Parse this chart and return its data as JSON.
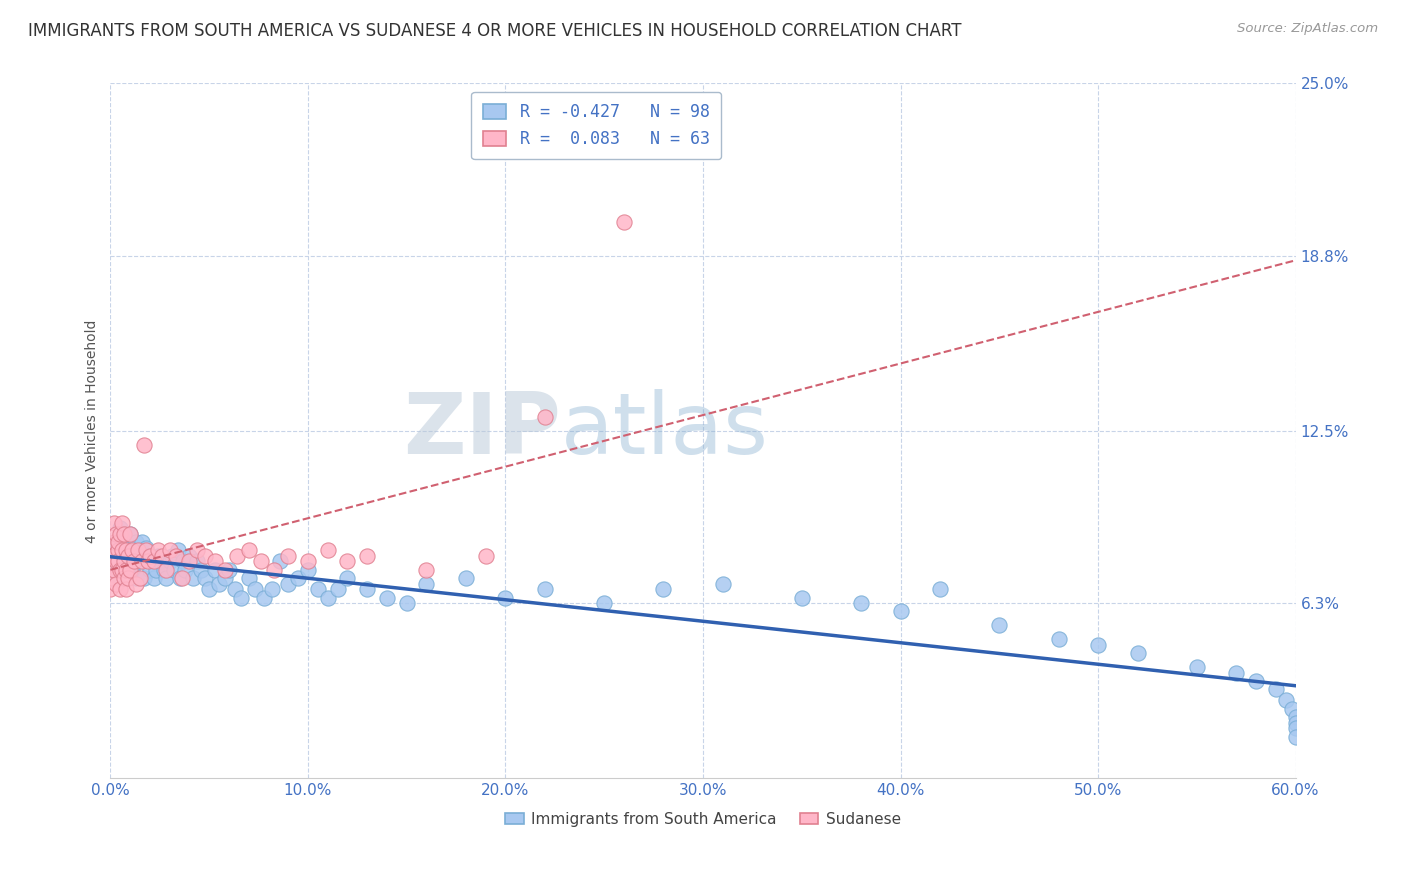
{
  "title": "IMMIGRANTS FROM SOUTH AMERICA VS SUDANESE 4 OR MORE VEHICLES IN HOUSEHOLD CORRELATION CHART",
  "source": "Source: ZipAtlas.com",
  "ylabel": "4 or more Vehicles in Household",
  "series": [
    {
      "name": "Immigrants from South America",
      "color": "#a8c8f0",
      "edge_color": "#7aaed6",
      "R": -0.427,
      "N": 98,
      "trend_color": "#3060b0",
      "trend_style": "solid",
      "trend_lw": 2.5,
      "x": [
        0.001,
        0.002,
        0.002,
        0.003,
        0.003,
        0.004,
        0.004,
        0.005,
        0.005,
        0.006,
        0.006,
        0.007,
        0.007,
        0.008,
        0.008,
        0.009,
        0.009,
        0.01,
        0.01,
        0.011,
        0.011,
        0.012,
        0.013,
        0.013,
        0.014,
        0.015,
        0.016,
        0.017,
        0.018,
        0.018,
        0.019,
        0.02,
        0.021,
        0.022,
        0.023,
        0.024,
        0.025,
        0.027,
        0.028,
        0.03,
        0.031,
        0.032,
        0.034,
        0.035,
        0.037,
        0.038,
        0.04,
        0.042,
        0.044,
        0.046,
        0.048,
        0.05,
        0.053,
        0.055,
        0.058,
        0.06,
        0.063,
        0.066,
        0.07,
        0.073,
        0.078,
        0.082,
        0.086,
        0.09,
        0.095,
        0.1,
        0.105,
        0.11,
        0.115,
        0.12,
        0.13,
        0.14,
        0.15,
        0.16,
        0.18,
        0.2,
        0.22,
        0.25,
        0.28,
        0.31,
        0.35,
        0.38,
        0.4,
        0.42,
        0.45,
        0.48,
        0.5,
        0.52,
        0.55,
        0.57,
        0.58,
        0.59,
        0.595,
        0.598,
        0.6,
        0.6,
        0.6,
        0.6
      ],
      "y": [
        0.075,
        0.072,
        0.082,
        0.078,
        0.085,
        0.08,
        0.073,
        0.085,
        0.09,
        0.082,
        0.078,
        0.075,
        0.088,
        0.08,
        0.085,
        0.076,
        0.082,
        0.088,
        0.079,
        0.075,
        0.082,
        0.078,
        0.085,
        0.072,
        0.08,
        0.078,
        0.085,
        0.072,
        0.079,
        0.083,
        0.08,
        0.075,
        0.078,
        0.072,
        0.075,
        0.08,
        0.078,
        0.075,
        0.072,
        0.078,
        0.08,
        0.075,
        0.082,
        0.072,
        0.078,
        0.075,
        0.08,
        0.072,
        0.078,
        0.075,
        0.072,
        0.068,
        0.075,
        0.07,
        0.072,
        0.075,
        0.068,
        0.065,
        0.072,
        0.068,
        0.065,
        0.068,
        0.078,
        0.07,
        0.072,
        0.075,
        0.068,
        0.065,
        0.068,
        0.072,
        0.068,
        0.065,
        0.063,
        0.07,
        0.072,
        0.065,
        0.068,
        0.063,
        0.068,
        0.07,
        0.065,
        0.063,
        0.06,
        0.068,
        0.055,
        0.05,
        0.048,
        0.045,
        0.04,
        0.038,
        0.035,
        0.032,
        0.028,
        0.025,
        0.022,
        0.02,
        0.018,
        0.015
      ]
    },
    {
      "name": "Sudanese",
      "color": "#ffb6c8",
      "edge_color": "#e08090",
      "R": 0.083,
      "N": 63,
      "trend_color": "#d06070",
      "trend_style": "dashed",
      "trend_lw": 1.5,
      "x": [
        0.0,
        0.001,
        0.001,
        0.002,
        0.002,
        0.002,
        0.003,
        0.003,
        0.003,
        0.004,
        0.004,
        0.004,
        0.005,
        0.005,
        0.005,
        0.006,
        0.006,
        0.006,
        0.007,
        0.007,
        0.007,
        0.008,
        0.008,
        0.008,
        0.009,
        0.009,
        0.01,
        0.01,
        0.011,
        0.012,
        0.013,
        0.014,
        0.015,
        0.016,
        0.017,
        0.018,
        0.019,
        0.02,
        0.022,
        0.024,
        0.026,
        0.028,
        0.03,
        0.033,
        0.036,
        0.04,
        0.044,
        0.048,
        0.053,
        0.058,
        0.064,
        0.07,
        0.076,
        0.083,
        0.09,
        0.1,
        0.11,
        0.12,
        0.13,
        0.16,
        0.19,
        0.22,
        0.26
      ],
      "y": [
        0.068,
        0.08,
        0.072,
        0.085,
        0.075,
        0.092,
        0.088,
        0.078,
        0.07,
        0.082,
        0.078,
        0.085,
        0.075,
        0.088,
        0.068,
        0.092,
        0.075,
        0.082,
        0.078,
        0.088,
        0.072,
        0.068,
        0.082,
        0.075,
        0.08,
        0.072,
        0.088,
        0.075,
        0.082,
        0.078,
        0.07,
        0.082,
        0.072,
        0.078,
        0.12,
        0.082,
        0.078,
        0.08,
        0.078,
        0.082,
        0.08,
        0.075,
        0.082,
        0.08,
        0.072,
        0.078,
        0.082,
        0.08,
        0.078,
        0.075,
        0.08,
        0.082,
        0.078,
        0.075,
        0.08,
        0.078,
        0.082,
        0.078,
        0.08,
        0.075,
        0.08,
        0.13,
        0.2
      ]
    }
  ],
  "xlim": [
    0.0,
    0.6
  ],
  "ylim": [
    0.0,
    0.25
  ],
  "yticks": [
    0.0,
    0.063,
    0.125,
    0.188,
    0.25
  ],
  "ytick_labels": [
    "",
    "6.3%",
    "12.5%",
    "18.8%",
    "25.0%"
  ],
  "xtick_labels": [
    "0.0%",
    "10.0%",
    "20.0%",
    "30.0%",
    "40.0%",
    "50.0%",
    "60.0%"
  ],
  "xticks": [
    0.0,
    0.1,
    0.2,
    0.3,
    0.4,
    0.5,
    0.6
  ],
  "legend_R1": "R = -0.427",
  "legend_N1": "N = 98",
  "legend_R2": "R =  0.083",
  "legend_N2": "N = 63",
  "watermark_zip": "ZIP",
  "watermark_atlas": "atlas",
  "background_color": "#ffffff",
  "grid_color": "#c8d4e8",
  "title_fontsize": 12,
  "tick_label_color": "#4472c4"
}
